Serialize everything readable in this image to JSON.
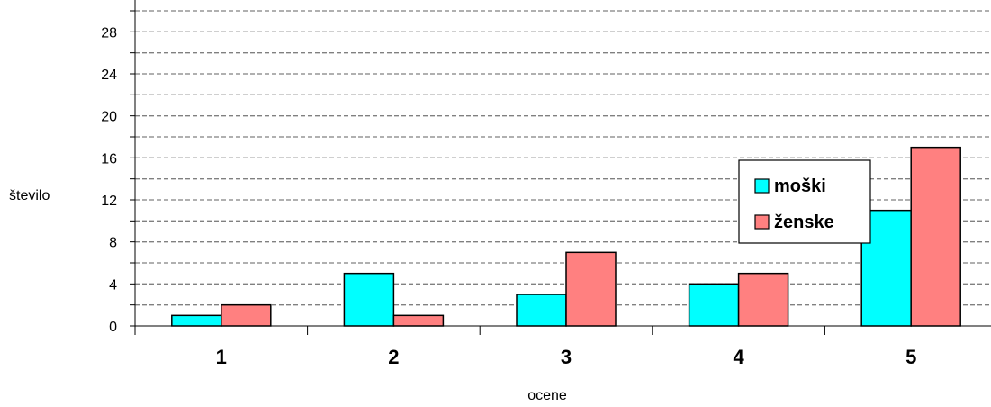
{
  "chart_data": {
    "type": "bar",
    "categories": [
      "1",
      "2",
      "3",
      "4",
      "5"
    ],
    "series": [
      {
        "name": "moški",
        "values": [
          1,
          5,
          3,
          4,
          11
        ],
        "color": "#00ffff"
      },
      {
        "name": "ženske",
        "values": [
          2,
          1,
          7,
          5,
          17
        ],
        "color": "#ff8080"
      }
    ],
    "xlabel": "ocene",
    "ylabel": "število",
    "ylim": [
      0,
      30
    ],
    "yticks": [
      0,
      4,
      8,
      12,
      16,
      20,
      24,
      28
    ],
    "grid": true,
    "legend_position": "right"
  }
}
